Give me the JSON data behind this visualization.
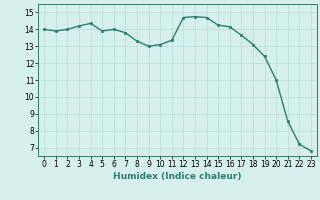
{
  "x": [
    0,
    1,
    2,
    3,
    4,
    5,
    6,
    7,
    8,
    9,
    10,
    11,
    12,
    13,
    14,
    15,
    16,
    17,
    18,
    19,
    20,
    21,
    22,
    23
  ],
  "y": [
    14.0,
    13.9,
    14.0,
    14.2,
    14.35,
    13.9,
    14.0,
    13.8,
    13.3,
    13.0,
    13.1,
    13.35,
    14.7,
    14.75,
    14.7,
    14.25,
    14.15,
    13.65,
    13.1,
    12.4,
    11.0,
    8.55,
    7.2,
    6.8
  ],
  "line_color": "#2e7d6e",
  "marker": "s",
  "marker_size": 1.8,
  "bg_color": "#d6f0ef",
  "grid_color": "#b8dbd9",
  "xlabel": "Humidex (Indice chaleur)",
  "xlim": [
    -0.5,
    23.5
  ],
  "ylim": [
    6.5,
    15.5
  ],
  "yticks": [
    7,
    8,
    9,
    10,
    11,
    12,
    13,
    14,
    15
  ],
  "xticks": [
    0,
    1,
    2,
    3,
    4,
    5,
    6,
    7,
    8,
    9,
    10,
    11,
    12,
    13,
    14,
    15,
    16,
    17,
    18,
    19,
    20,
    21,
    22,
    23
  ],
  "xlabel_fontsize": 6.5,
  "tick_fontsize": 5.5,
  "line_width": 1.0
}
